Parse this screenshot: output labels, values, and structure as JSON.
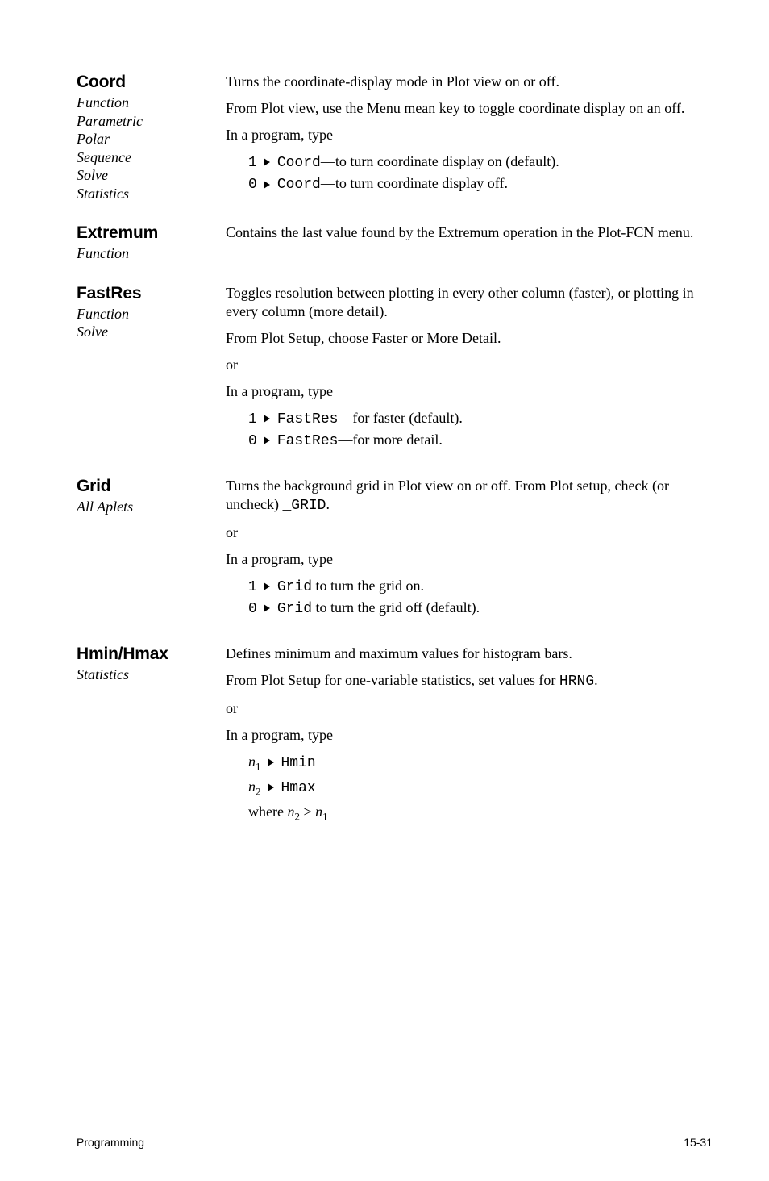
{
  "entries": [
    {
      "title": "Coord",
      "subs": [
        "Function",
        "Parametric",
        "Polar",
        "Sequence",
        "Solve",
        "Statistics"
      ],
      "blocks": [
        {
          "kind": "para",
          "text": "Turns the coordinate-display mode in Plot view on or off."
        },
        {
          "kind": "para",
          "text": "From Plot view, use the Menu mean key to toggle coordinate display on an off."
        },
        {
          "kind": "para",
          "text": "In a program, type"
        },
        {
          "kind": "bullets",
          "items": [
            {
              "pre": "1",
              "code": "Coord",
              "post": "—to turn coordinate display on (default)."
            },
            {
              "pre": "0",
              "code": "Coord",
              "post": "—to turn coordinate display off."
            }
          ]
        }
      ]
    },
    {
      "title": "Extremum",
      "subs": [
        "Function"
      ],
      "blocks": [
        {
          "kind": "para",
          "text": "Contains the last value found by the Extremum operation in the Plot-FCN menu."
        }
      ]
    },
    {
      "title": "FastRes",
      "subs": [
        "Function",
        "Solve"
      ],
      "blocks": [
        {
          "kind": "para",
          "text": "Toggles resolution between plotting in every other column (faster), or plotting in every column (more detail)."
        },
        {
          "kind": "para",
          "text": "From Plot Setup, choose Faster or More Detail."
        },
        {
          "kind": "para",
          "text": "or"
        },
        {
          "kind": "para",
          "text": "In a program, type"
        },
        {
          "kind": "bullets",
          "items": [
            {
              "pre": "1",
              "code": "FastRes",
              "post": "—for faster (default)."
            },
            {
              "pre": "0",
              "code": "FastRes",
              "post": "—for more detail."
            }
          ]
        }
      ]
    },
    {
      "title": "Grid",
      "subs": [
        "All Aplets"
      ],
      "blocks": [
        {
          "kind": "para_mixed",
          "runs": [
            {
              "t": "Turns the background grid in Plot view on or off. From Plot setup, check (or uncheck) "
            },
            {
              "t": "_GRID",
              "mono": true
            },
            {
              "t": "."
            }
          ]
        },
        {
          "kind": "para",
          "text": "or"
        },
        {
          "kind": "para",
          "text": "In a program, type"
        },
        {
          "kind": "bullets",
          "items": [
            {
              "pre": "1",
              "code": "Grid",
              "post": " to turn the grid on."
            },
            {
              "pre": "0",
              "code": "Grid",
              "post": " to turn the grid off (default)."
            }
          ]
        }
      ]
    },
    {
      "title": "Hmin/Hmax",
      "subs": [
        "Statistics"
      ],
      "blocks": [
        {
          "kind": "para",
          "text": "Defines minimum and maximum values for histogram bars."
        },
        {
          "kind": "para_mixed",
          "runs": [
            {
              "t": "From Plot Setup for one-variable statistics, set values for "
            },
            {
              "t": "HRNG",
              "mono": true
            },
            {
              "t": "."
            }
          ]
        },
        {
          "kind": "para",
          "text": "or"
        },
        {
          "kind": "para",
          "text": "In a program, type"
        },
        {
          "kind": "formula",
          "sym": "n",
          "sub": "1",
          "code": "Hmin"
        },
        {
          "kind": "formula",
          "sym": "n",
          "sub": "2",
          "code": "Hmax"
        },
        {
          "kind": "where",
          "text": "where  ",
          "sym": "n",
          "sub1": "2",
          "op": " > ",
          "sub2": "1"
        }
      ]
    }
  ],
  "footer": {
    "left": "Programming",
    "right": "15-31"
  }
}
